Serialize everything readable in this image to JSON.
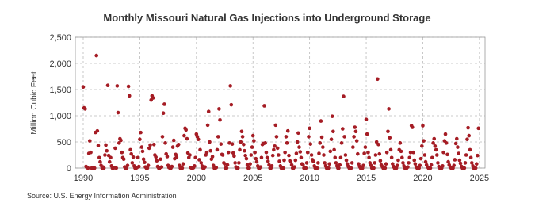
{
  "chart_data": {
    "type": "scatter",
    "title": "Monthly Missouri Natural Gas Injections into Underground Storage",
    "y_label": "Million Cubic Feet",
    "source": "Source: U.S. Energy Information Administration",
    "color": "#a51c24",
    "grid": true,
    "xlim": [
      1989.3,
      2025.5
    ],
    "ylim": [
      0,
      2500
    ],
    "xticks": [
      1990,
      1995,
      2000,
      2005,
      2010,
      2015,
      2020,
      2025
    ],
    "yticks": [
      0,
      {
        "value": 500,
        "label": "500"
      },
      {
        "value": 1000,
        "label": "1,000"
      },
      {
        "value": 1500,
        "label": "1,500"
      },
      {
        "value": 2000,
        "label": "2,000"
      },
      {
        "value": 2500,
        "label": "2,500"
      }
    ],
    "series": [
      {
        "name": "Missouri",
        "color": "#a51c24",
        "x": [
          1990,
          1990.08,
          1990.17,
          1990.25,
          1990.33,
          1990.42,
          1990.5,
          1990.58,
          1990.67,
          1990.75,
          1990.83,
          1990.92,
          1991,
          1991.08,
          1991.17,
          1991.25,
          1991.33,
          1991.42,
          1991.5,
          1991.58,
          1991.67,
          1991.75,
          1991.83,
          1991.92,
          1992,
          1992.08,
          1992.17,
          1992.25,
          1992.33,
          1992.42,
          1992.5,
          1992.58,
          1992.67,
          1992.75,
          1992.83,
          1992.92,
          1993,
          1993.08,
          1993.17,
          1993.25,
          1993.33,
          1993.42,
          1993.5,
          1993.58,
          1993.67,
          1993.75,
          1993.83,
          1993.92,
          1994,
          1994.08,
          1994.17,
          1994.25,
          1994.33,
          1994.42,
          1994.5,
          1994.58,
          1994.67,
          1994.75,
          1994.83,
          1994.92,
          1995,
          1995.08,
          1995.17,
          1995.25,
          1995.33,
          1995.42,
          1995.5,
          1995.58,
          1995.67,
          1995.75,
          1995.83,
          1995.92,
          1996,
          1996.08,
          1996.17,
          1996.25,
          1996.33,
          1996.42,
          1996.5,
          1996.58,
          1996.67,
          1996.75,
          1996.83,
          1996.92,
          1997,
          1997.08,
          1997.17,
          1997.25,
          1997.33,
          1997.42,
          1997.5,
          1997.58,
          1997.67,
          1997.75,
          1997.83,
          1997.92,
          1998,
          1998.08,
          1998.17,
          1998.25,
          1998.33,
          1998.42,
          1998.5,
          1998.58,
          1998.67,
          1998.75,
          1998.83,
          1998.92,
          1999,
          1999.08,
          1999.17,
          1999.25,
          1999.33,
          1999.42,
          1999.5,
          1999.58,
          1999.67,
          1999.75,
          1999.83,
          1999.92,
          2000,
          2000.08,
          2000.17,
          2000.25,
          2000.33,
          2000.42,
          2000.5,
          2000.58,
          2000.67,
          2000.75,
          2000.83,
          2000.92,
          2001,
          2001.08,
          2001.17,
          2001.25,
          2001.33,
          2001.42,
          2001.5,
          2001.58,
          2001.67,
          2001.75,
          2001.83,
          2001.92,
          2002,
          2002.08,
          2002.17,
          2002.25,
          2002.33,
          2002.42,
          2002.5,
          2002.58,
          2002.67,
          2002.75,
          2002.83,
          2002.92,
          2003,
          2003.08,
          2003.17,
          2003.25,
          2003.33,
          2003.42,
          2003.5,
          2003.58,
          2003.67,
          2003.75,
          2003.83,
          2003.92,
          2004,
          2004.08,
          2004.17,
          2004.25,
          2004.33,
          2004.42,
          2004.5,
          2004.58,
          2004.67,
          2004.75,
          2004.83,
          2004.92,
          2005,
          2005.08,
          2005.17,
          2005.25,
          2005.33,
          2005.42,
          2005.5,
          2005.58,
          2005.67,
          2005.75,
          2005.83,
          2005.92,
          2006,
          2006.08,
          2006.17,
          2006.25,
          2006.33,
          2006.42,
          2006.5,
          2006.58,
          2006.67,
          2006.75,
          2006.83,
          2006.92,
          2007,
          2007.08,
          2007.17,
          2007.25,
          2007.33,
          2007.42,
          2007.5,
          2007.58,
          2007.67,
          2007.75,
          2007.83,
          2007.92,
          2008,
          2008.08,
          2008.17,
          2008.25,
          2008.33,
          2008.42,
          2008.5,
          2008.58,
          2008.67,
          2008.75,
          2008.83,
          2008.92,
          2009,
          2009.08,
          2009.17,
          2009.25,
          2009.33,
          2009.42,
          2009.5,
          2009.58,
          2009.67,
          2009.75,
          2009.83,
          2009.92,
          2010,
          2010.08,
          2010.17,
          2010.25,
          2010.33,
          2010.42,
          2010.5,
          2010.58,
          2010.67,
          2010.75,
          2010.83,
          2010.92,
          2011,
          2011.08,
          2011.17,
          2011.25,
          2011.33,
          2011.42,
          2011.5,
          2011.58,
          2011.67,
          2011.75,
          2011.83,
          2011.92,
          2012,
          2012.08,
          2012.17,
          2012.25,
          2012.33,
          2012.42,
          2012.5,
          2012.58,
          2012.67,
          2012.75,
          2012.83,
          2012.92,
          2013,
          2013.08,
          2013.17,
          2013.25,
          2013.33,
          2013.42,
          2013.5,
          2013.58,
          2013.67,
          2013.75,
          2013.83,
          2013.92,
          2014,
          2014.08,
          2014.17,
          2014.25,
          2014.33,
          2014.42,
          2014.5,
          2014.58,
          2014.67,
          2014.75,
          2014.83,
          2014.92,
          2015,
          2015.08,
          2015.17,
          2015.25,
          2015.33,
          2015.42,
          2015.5,
          2015.58,
          2015.67,
          2015.75,
          2015.83,
          2015.92,
          2016,
          2016.08,
          2016.17,
          2016.25,
          2016.33,
          2016.42,
          2016.5,
          2016.58,
          2016.67,
          2016.75,
          2016.83,
          2016.92,
          2017,
          2017.08,
          2017.17,
          2017.25,
          2017.33,
          2017.42,
          2017.5,
          2017.58,
          2017.67,
          2017.75,
          2017.83,
          2017.92,
          2018,
          2018.08,
          2018.17,
          2018.25,
          2018.33,
          2018.42,
          2018.5,
          2018.58,
          2018.67,
          2018.75,
          2018.83,
          2018.92,
          2019,
          2019.08,
          2019.17,
          2019.25,
          2019.33,
          2019.42,
          2019.5,
          2019.58,
          2019.67,
          2019.75,
          2019.83,
          2019.92,
          2020,
          2020.08,
          2020.17,
          2020.25,
          2020.33,
          2020.42,
          2020.5,
          2020.58,
          2020.67,
          2020.75,
          2020.83,
          2020.92,
          2021,
          2021.08,
          2021.17,
          2021.25,
          2021.33,
          2021.42,
          2021.5,
          2021.58,
          2021.67,
          2021.75,
          2021.83,
          2021.92,
          2022,
          2022.08,
          2022.17,
          2022.25,
          2022.33,
          2022.42,
          2022.5,
          2022.58,
          2022.67,
          2022.75,
          2022.83,
          2022.92,
          2023,
          2023.08,
          2023.17,
          2023.25,
          2023.33,
          2023.42,
          2023.5,
          2023.58,
          2023.67,
          2023.75,
          2023.83,
          2023.92,
          2024,
          2024.08,
          2024.17,
          2024.25,
          2024.33,
          2024.42,
          2024.5,
          2024.58,
          2024.67,
          2024.75,
          2024.83,
          2024.92
        ],
        "values": [
          1550,
          1150,
          1130,
          30,
          10,
          0,
          280,
          520,
          300,
          0,
          0,
          10,
          0,
          680,
          2150,
          710,
          430,
          200,
          120,
          50,
          0,
          20,
          0,
          250,
          440,
          330,
          1580,
          240,
          120,
          200,
          40,
          0,
          0,
          10,
          380,
          0,
          1570,
          1060,
          480,
          560,
          530,
          300,
          200,
          170,
          20,
          0,
          0,
          50,
          1560,
          1380,
          350,
          270,
          100,
          210,
          40,
          0,
          0,
          10,
          200,
          30,
          550,
          680,
          400,
          320,
          170,
          110,
          20,
          0,
          0,
          50,
          380,
          440,
          1300,
          1380,
          1340,
          450,
          250,
          210,
          140,
          30,
          0,
          0,
          170,
          20,
          600,
          1050,
          1220,
          480,
          270,
          220,
          50,
          10,
          0,
          0,
          30,
          400,
          530,
          180,
          260,
          210,
          420,
          450,
          50,
          0,
          0,
          0,
          80,
          620,
          760,
          730,
          560,
          290,
          200,
          250,
          10,
          0,
          0,
          10,
          40,
          200,
          650,
          600,
          550,
          160,
          350,
          100,
          40,
          0,
          0,
          20,
          250,
          300,
          820,
          1080,
          500,
          330,
          170,
          220,
          50,
          0,
          0,
          10,
          350,
          600,
          1130,
          920,
          460,
          260,
          250,
          100,
          80,
          0,
          0,
          60,
          300,
          480,
          1570,
          1210,
          460,
          290,
          230,
          100,
          20,
          0,
          0,
          100,
          350,
          500,
          700,
          600,
          450,
          330,
          240,
          180,
          60,
          0,
          0,
          80,
          250,
          400,
          620,
          520,
          300,
          180,
          120,
          40,
          0,
          0,
          20,
          200,
          450,
          470,
          1190,
          480,
          300,
          200,
          130,
          60,
          0,
          0,
          40,
          240,
          350,
          420,
          820,
          600,
          380,
          250,
          130,
          40,
          0,
          0,
          0,
          150,
          300,
          600,
          480,
          710,
          240,
          140,
          120,
          60,
          0,
          0,
          20,
          150,
          280,
          500,
          670,
          400,
          310,
          200,
          80,
          60,
          0,
          0,
          0,
          100,
          300,
          600,
          760,
          460,
          250,
          160,
          130,
          40,
          0,
          0,
          0,
          100,
          280,
          480,
          900,
          590,
          400,
          250,
          100,
          40,
          0,
          0,
          0,
          80,
          320,
          550,
          990,
          700,
          350,
          200,
          100,
          40,
          0,
          0,
          60,
          200,
          480,
          750,
          1370,
          600,
          250,
          150,
          80,
          30,
          0,
          0,
          0,
          100,
          400,
          600,
          780,
          700,
          520,
          270,
          80,
          30,
          0,
          0,
          0,
          50,
          280,
          400,
          930,
          650,
          300,
          200,
          100,
          50,
          0,
          0,
          0,
          100,
          250,
          500,
          1700,
          450,
          270,
          140,
          60,
          30,
          0,
          0,
          0,
          80,
          300,
          700,
          1130,
          580,
          350,
          200,
          80,
          30,
          0,
          0,
          0,
          50,
          150,
          350,
          480,
          320,
          200,
          100,
          40,
          0,
          0,
          0,
          20,
          100,
          200,
          300,
          810,
          780,
          300,
          150,
          80,
          20,
          0,
          0,
          0,
          50,
          180,
          420,
          810,
          520,
          250,
          120,
          60,
          20,
          0,
          0,
          0,
          60,
          200,
          480,
          560,
          420,
          350,
          250,
          100,
          30,
          0,
          0,
          0,
          40,
          300,
          520,
          650,
          480,
          260,
          120,
          60,
          20,
          0,
          0,
          0,
          50,
          160,
          470,
          560,
          400,
          280,
          150,
          90,
          30,
          0,
          0,
          0,
          100,
          250,
          550,
          770,
          620,
          350,
          200,
          100,
          40,
          0,
          0,
          0,
          80,
          240,
          760
        ]
      }
    ]
  }
}
